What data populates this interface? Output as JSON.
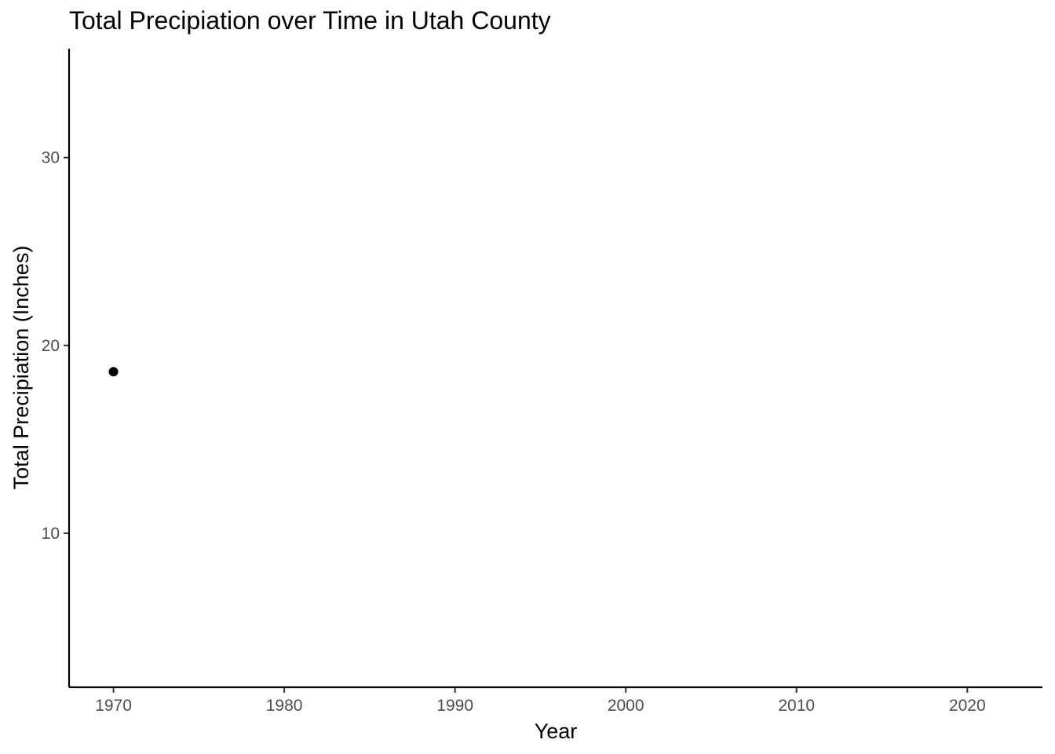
{
  "chart_data": {
    "type": "scatter",
    "title": "Total Precipiation over Time in Utah County",
    "xlabel": "Year",
    "ylabel": "Total Precipiation (Inches)",
    "xlim": [
      1967.4,
      2024.4
    ],
    "ylim": [
      1.8,
      35.8
    ],
    "x_ticks": [
      1970,
      1980,
      1990,
      2000,
      2010,
      2020
    ],
    "x_tick_labels": [
      "1970",
      "1980",
      "1990",
      "2000",
      "2010",
      "2020"
    ],
    "y_ticks": [
      10,
      20,
      30
    ],
    "y_tick_labels": [
      "10",
      "20",
      "30"
    ],
    "grid": false,
    "legend": "none",
    "point_color": "#000000",
    "points": [
      {
        "x": 1970,
        "y": 18.6
      }
    ]
  }
}
